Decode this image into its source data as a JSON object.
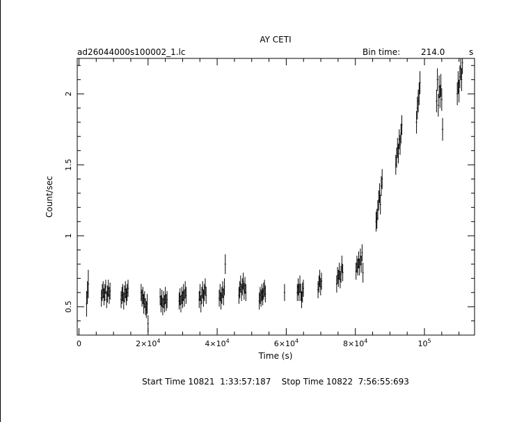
{
  "chart_data": {
    "type": "scatter",
    "title": "AY CETI",
    "file_label": "ad26044000s100002_1.lc",
    "bin_time_label": "Bin time:",
    "bin_time_value": "214.0",
    "bin_time_unit": "s",
    "xlabel": "Time (s)",
    "ylabel": "Count/sec",
    "footer": "Start Time 10821  1:33:57:187    Stop Time 10822  7:56:55:693",
    "xlim": [
      -500,
      114500
    ],
    "ylim": [
      0.3,
      2.25
    ],
    "x_ticks": [
      {
        "value": 0,
        "base": "0",
        "exp": ""
      },
      {
        "value": 20000,
        "base": "2×10",
        "exp": "4"
      },
      {
        "value": 40000,
        "base": "4×10",
        "exp": "4"
      },
      {
        "value": 60000,
        "base": "6×10",
        "exp": "4"
      },
      {
        "value": 80000,
        "base": "8×10",
        "exp": "4"
      },
      {
        "value": 100000,
        "base": "10",
        "exp": "5"
      }
    ],
    "y_ticks": [
      {
        "value": 0.5,
        "label": "0.5"
      },
      {
        "value": 1,
        "label": "1"
      },
      {
        "value": 1.5,
        "label": "1.5"
      },
      {
        "value": 2,
        "label": "2"
      }
    ],
    "series": [
      {
        "points": [
          {
            "x": 2200,
            "y": 0.52,
            "err": 0.09
          },
          {
            "x": 2450,
            "y": 0.6,
            "err": 0.08
          },
          {
            "x": 2700,
            "y": 0.66,
            "err": 0.1
          },
          {
            "x": 6500,
            "y": 0.56,
            "err": 0.06
          },
          {
            "x": 6750,
            "y": 0.6,
            "err": 0.06
          },
          {
            "x": 7000,
            "y": 0.62,
            "err": 0.06
          },
          {
            "x": 7250,
            "y": 0.57,
            "err": 0.06
          },
          {
            "x": 7500,
            "y": 0.6,
            "err": 0.06
          },
          {
            "x": 7750,
            "y": 0.64,
            "err": 0.05
          },
          {
            "x": 8000,
            "y": 0.55,
            "err": 0.06
          },
          {
            "x": 8250,
            "y": 0.59,
            "err": 0.06
          },
          {
            "x": 8500,
            "y": 0.63,
            "err": 0.06
          },
          {
            "x": 8750,
            "y": 0.58,
            "err": 0.06
          },
          {
            "x": 9000,
            "y": 0.61,
            "err": 0.06
          },
          {
            "x": 12200,
            "y": 0.55,
            "err": 0.06
          },
          {
            "x": 12450,
            "y": 0.58,
            "err": 0.06
          },
          {
            "x": 12700,
            "y": 0.6,
            "err": 0.06
          },
          {
            "x": 12950,
            "y": 0.54,
            "err": 0.06
          },
          {
            "x": 13200,
            "y": 0.59,
            "err": 0.06
          },
          {
            "x": 13450,
            "y": 0.62,
            "err": 0.06
          },
          {
            "x": 13700,
            "y": 0.57,
            "err": 0.06
          },
          {
            "x": 13950,
            "y": 0.6,
            "err": 0.06
          },
          {
            "x": 14200,
            "y": 0.63,
            "err": 0.06
          },
          {
            "x": 18000,
            "y": 0.6,
            "err": 0.06
          },
          {
            "x": 18250,
            "y": 0.56,
            "err": 0.06
          },
          {
            "x": 18500,
            "y": 0.58,
            "err": 0.06
          },
          {
            "x": 18750,
            "y": 0.52,
            "err": 0.07
          },
          {
            "x": 19000,
            "y": 0.55,
            "err": 0.06
          },
          {
            "x": 19250,
            "y": 0.5,
            "err": 0.06
          },
          {
            "x": 19500,
            "y": 0.48,
            "err": 0.06
          },
          {
            "x": 19750,
            "y": 0.52,
            "err": 0.07
          },
          {
            "x": 20000,
            "y": 0.38,
            "err": 0.06
          },
          {
            "x": 23500,
            "y": 0.57,
            "err": 0.06
          },
          {
            "x": 23750,
            "y": 0.52,
            "err": 0.06
          },
          {
            "x": 24000,
            "y": 0.56,
            "err": 0.06
          },
          {
            "x": 24250,
            "y": 0.5,
            "err": 0.06
          },
          {
            "x": 24500,
            "y": 0.55,
            "err": 0.06
          },
          {
            "x": 24750,
            "y": 0.52,
            "err": 0.06
          },
          {
            "x": 25000,
            "y": 0.58,
            "err": 0.06
          },
          {
            "x": 25250,
            "y": 0.53,
            "err": 0.06
          },
          {
            "x": 25500,
            "y": 0.55,
            "err": 0.06
          },
          {
            "x": 29000,
            "y": 0.54,
            "err": 0.06
          },
          {
            "x": 29250,
            "y": 0.57,
            "err": 0.06
          },
          {
            "x": 29500,
            "y": 0.52,
            "err": 0.06
          },
          {
            "x": 29750,
            "y": 0.58,
            "err": 0.06
          },
          {
            "x": 30000,
            "y": 0.55,
            "err": 0.06
          },
          {
            "x": 30250,
            "y": 0.6,
            "err": 0.06
          },
          {
            "x": 30500,
            "y": 0.56,
            "err": 0.06
          },
          {
            "x": 30750,
            "y": 0.62,
            "err": 0.06
          },
          {
            "x": 31000,
            "y": 0.58,
            "err": 0.06
          },
          {
            "x": 34800,
            "y": 0.55,
            "err": 0.06
          },
          {
            "x": 35050,
            "y": 0.6,
            "err": 0.06
          },
          {
            "x": 35300,
            "y": 0.52,
            "err": 0.06
          },
          {
            "x": 35550,
            "y": 0.58,
            "err": 0.06
          },
          {
            "x": 35800,
            "y": 0.62,
            "err": 0.06
          },
          {
            "x": 36050,
            "y": 0.56,
            "err": 0.06
          },
          {
            "x": 36300,
            "y": 0.6,
            "err": 0.06
          },
          {
            "x": 36550,
            "y": 0.64,
            "err": 0.06
          },
          {
            "x": 36800,
            "y": 0.58,
            "err": 0.06
          },
          {
            "x": 40600,
            "y": 0.56,
            "err": 0.06
          },
          {
            "x": 40850,
            "y": 0.6,
            "err": 0.06
          },
          {
            "x": 41100,
            "y": 0.54,
            "err": 0.06
          },
          {
            "x": 41350,
            "y": 0.58,
            "err": 0.06
          },
          {
            "x": 41600,
            "y": 0.62,
            "err": 0.06
          },
          {
            "x": 41850,
            "y": 0.57,
            "err": 0.06
          },
          {
            "x": 42100,
            "y": 0.64,
            "err": 0.06
          },
          {
            "x": 42350,
            "y": 0.8,
            "err": 0.07
          },
          {
            "x": 46300,
            "y": 0.58,
            "err": 0.06
          },
          {
            "x": 46550,
            "y": 0.62,
            "err": 0.06
          },
          {
            "x": 46800,
            "y": 0.66,
            "err": 0.06
          },
          {
            "x": 47050,
            "y": 0.6,
            "err": 0.06
          },
          {
            "x": 47300,
            "y": 0.64,
            "err": 0.06
          },
          {
            "x": 47550,
            "y": 0.68,
            "err": 0.06
          },
          {
            "x": 47800,
            "y": 0.61,
            "err": 0.06
          },
          {
            "x": 48050,
            "y": 0.65,
            "err": 0.06
          },
          {
            "x": 48300,
            "y": 0.6,
            "err": 0.06
          },
          {
            "x": 52200,
            "y": 0.54,
            "err": 0.06
          },
          {
            "x": 52450,
            "y": 0.58,
            "err": 0.06
          },
          {
            "x": 52700,
            "y": 0.56,
            "err": 0.06
          },
          {
            "x": 52950,
            "y": 0.6,
            "err": 0.06
          },
          {
            "x": 53200,
            "y": 0.57,
            "err": 0.06
          },
          {
            "x": 53450,
            "y": 0.61,
            "err": 0.06
          },
          {
            "x": 53700,
            "y": 0.63,
            "err": 0.06
          },
          {
            "x": 53950,
            "y": 0.59,
            "err": 0.06
          },
          {
            "x": 59500,
            "y": 0.6,
            "err": 0.06
          },
          {
            "x": 63200,
            "y": 0.6,
            "err": 0.06
          },
          {
            "x": 63450,
            "y": 0.64,
            "err": 0.06
          },
          {
            "x": 63700,
            "y": 0.6,
            "err": 0.06
          },
          {
            "x": 63950,
            "y": 0.66,
            "err": 0.06
          },
          {
            "x": 64200,
            "y": 0.6,
            "err": 0.06
          },
          {
            "x": 64450,
            "y": 0.55,
            "err": 0.06
          },
          {
            "x": 64700,
            "y": 0.6,
            "err": 0.07
          },
          {
            "x": 64950,
            "y": 0.63,
            "err": 0.06
          },
          {
            "x": 69200,
            "y": 0.62,
            "err": 0.06
          },
          {
            "x": 69450,
            "y": 0.66,
            "err": 0.06
          },
          {
            "x": 69700,
            "y": 0.7,
            "err": 0.06
          },
          {
            "x": 69950,
            "y": 0.64,
            "err": 0.06
          },
          {
            "x": 70200,
            "y": 0.68,
            "err": 0.06
          },
          {
            "x": 74600,
            "y": 0.66,
            "err": 0.06
          },
          {
            "x": 74850,
            "y": 0.72,
            "err": 0.06
          },
          {
            "x": 75100,
            "y": 0.7,
            "err": 0.06
          },
          {
            "x": 75350,
            "y": 0.75,
            "err": 0.06
          },
          {
            "x": 75600,
            "y": 0.69,
            "err": 0.06
          },
          {
            "x": 75850,
            "y": 0.73,
            "err": 0.06
          },
          {
            "x": 76100,
            "y": 0.8,
            "err": 0.06
          },
          {
            "x": 76350,
            "y": 0.74,
            "err": 0.06
          },
          {
            "x": 80200,
            "y": 0.75,
            "err": 0.06
          },
          {
            "x": 80450,
            "y": 0.8,
            "err": 0.06
          },
          {
            "x": 80700,
            "y": 0.78,
            "err": 0.06
          },
          {
            "x": 80950,
            "y": 0.83,
            "err": 0.06
          },
          {
            "x": 81200,
            "y": 0.78,
            "err": 0.06
          },
          {
            "x": 81450,
            "y": 0.85,
            "err": 0.06
          },
          {
            "x": 81700,
            "y": 0.8,
            "err": 0.06
          },
          {
            "x": 81950,
            "y": 0.88,
            "err": 0.06
          },
          {
            "x": 82200,
            "y": 0.74,
            "err": 0.07
          },
          {
            "x": 86000,
            "y": 1.1,
            "err": 0.07
          },
          {
            "x": 86250,
            "y": 1.12,
            "err": 0.07
          },
          {
            "x": 86500,
            "y": 1.18,
            "err": 0.07
          },
          {
            "x": 86750,
            "y": 1.25,
            "err": 0.07
          },
          {
            "x": 87000,
            "y": 1.3,
            "err": 0.07
          },
          {
            "x": 87250,
            "y": 1.22,
            "err": 0.07
          },
          {
            "x": 87500,
            "y": 1.35,
            "err": 0.07
          },
          {
            "x": 87750,
            "y": 1.4,
            "err": 0.07
          },
          {
            "x": 91700,
            "y": 1.5,
            "err": 0.07
          },
          {
            "x": 91950,
            "y": 1.55,
            "err": 0.07
          },
          {
            "x": 92200,
            "y": 1.62,
            "err": 0.07
          },
          {
            "x": 92450,
            "y": 1.58,
            "err": 0.07
          },
          {
            "x": 92700,
            "y": 1.68,
            "err": 0.07
          },
          {
            "x": 92950,
            "y": 1.64,
            "err": 0.07
          },
          {
            "x": 93200,
            "y": 1.72,
            "err": 0.07
          },
          {
            "x": 93450,
            "y": 1.78,
            "err": 0.07
          },
          {
            "x": 97700,
            "y": 1.8,
            "err": 0.08
          },
          {
            "x": 97950,
            "y": 1.9,
            "err": 0.08
          },
          {
            "x": 98200,
            "y": 1.95,
            "err": 0.08
          },
          {
            "x": 98450,
            "y": 2.0,
            "err": 0.08
          },
          {
            "x": 98700,
            "y": 2.08,
            "err": 0.08
          },
          {
            "x": 103500,
            "y": 1.95,
            "err": 0.08
          },
          {
            "x": 103750,
            "y": 2.1,
            "err": 0.08
          },
          {
            "x": 104000,
            "y": 1.92,
            "err": 0.08
          },
          {
            "x": 104250,
            "y": 2.05,
            "err": 0.08
          },
          {
            "x": 104500,
            "y": 1.98,
            "err": 0.08
          },
          {
            "x": 104750,
            "y": 2.06,
            "err": 0.08
          },
          {
            "x": 105000,
            "y": 1.96,
            "err": 0.08
          },
          {
            "x": 105250,
            "y": 1.75,
            "err": 0.08
          },
          {
            "x": 109500,
            "y": 2.0,
            "err": 0.08
          },
          {
            "x": 109750,
            "y": 2.08,
            "err": 0.08
          },
          {
            "x": 110000,
            "y": 2.02,
            "err": 0.08
          },
          {
            "x": 110250,
            "y": 2.12,
            "err": 0.08
          },
          {
            "x": 110500,
            "y": 2.18,
            "err": 0.08
          },
          {
            "x": 110750,
            "y": 2.1,
            "err": 0.08
          },
          {
            "x": 111000,
            "y": 2.22,
            "err": 0.08
          }
        ]
      }
    ]
  }
}
